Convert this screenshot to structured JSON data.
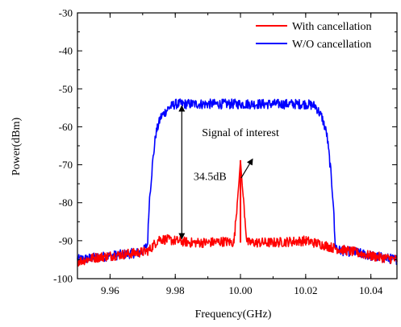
{
  "chart_data": {
    "type": "line",
    "xlabel": "Frequency(GHz)",
    "ylabel": "Power(dBm)",
    "xlim": [
      9.95,
      10.048
    ],
    "ylim": [
      -100,
      -30
    ],
    "x_ticks": [
      "9.96",
      "9.98",
      "10.00",
      "10.02",
      "10.04"
    ],
    "x_tick_values": [
      9.96,
      9.98,
      10.0,
      10.02,
      10.04
    ],
    "y_ticks": [
      "-30",
      "-40",
      "-50",
      "-60",
      "-70",
      "-80",
      "-90",
      "-100"
    ],
    "y_tick_values": [
      -30,
      -40,
      -50,
      -60,
      -70,
      -80,
      -90,
      -100
    ],
    "grid": false,
    "legend_position": "top-right",
    "series": [
      {
        "name": "With cancellation",
        "color": "#ff0000",
        "points": [
          [
            9.95,
            -95.5
          ],
          [
            9.955,
            -94.5
          ],
          [
            9.96,
            -94.0
          ],
          [
            9.965,
            -93.5
          ],
          [
            9.97,
            -93.0
          ],
          [
            9.972,
            -92.5
          ],
          [
            9.975,
            -89.5
          ],
          [
            9.98,
            -90.0
          ],
          [
            9.985,
            -90.5
          ],
          [
            9.99,
            -90.5
          ],
          [
            9.995,
            -90.2
          ],
          [
            9.998,
            -90.5
          ],
          [
            9.9995,
            -75.0
          ],
          [
            10.0,
            -68.8
          ],
          [
            10.0005,
            -75.0
          ],
          [
            10.002,
            -90.5
          ],
          [
            10.01,
            -90.5
          ],
          [
            10.02,
            -90.0
          ],
          [
            10.025,
            -91.0
          ],
          [
            10.029,
            -92.0
          ],
          [
            10.035,
            -93.0
          ],
          [
            10.04,
            -94.0
          ],
          [
            10.048,
            -95.0
          ]
        ]
      },
      {
        "name": "W/O cancellation",
        "color": "#0000ff",
        "points": [
          [
            9.95,
            -95.0
          ],
          [
            9.955,
            -94.5
          ],
          [
            9.96,
            -94.0
          ],
          [
            9.965,
            -93.5
          ],
          [
            9.97,
            -93.0
          ],
          [
            9.9715,
            -91.0
          ],
          [
            9.972,
            -80.0
          ],
          [
            9.973,
            -70.0
          ],
          [
            9.974,
            -62.0
          ],
          [
            9.9755,
            -57.5
          ],
          [
            9.978,
            -55.0
          ],
          [
            9.98,
            -54.0
          ],
          [
            9.99,
            -54.0
          ],
          [
            10.0,
            -54.0
          ],
          [
            10.01,
            -54.0
          ],
          [
            10.02,
            -54.0
          ],
          [
            10.023,
            -54.5
          ],
          [
            10.025,
            -57.5
          ],
          [
            10.0265,
            -62.0
          ],
          [
            10.0275,
            -70.0
          ],
          [
            10.0285,
            -80.0
          ],
          [
            10.029,
            -91.0
          ],
          [
            10.03,
            -92.5
          ],
          [
            10.035,
            -93.0
          ],
          [
            10.04,
            -94.0
          ],
          [
            10.048,
            -95.0
          ]
        ]
      }
    ],
    "annotations": [
      {
        "text": "34.5dB",
        "x": 9.9856,
        "y": -74.0
      },
      {
        "text": "Signal of interest",
        "x": 10.0,
        "y": -62.5
      }
    ],
    "measure_arrow": {
      "x": 9.982,
      "y_top": -54.5,
      "y_bottom": -89.5
    },
    "signal_arrow": {
      "x1": 10.0002,
      "y1": -73.5,
      "x2": 10.0037,
      "y2": -68.5
    }
  }
}
